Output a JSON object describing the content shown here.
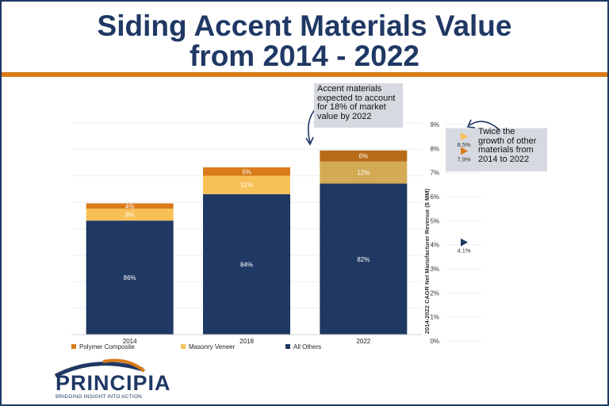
{
  "header": {
    "title_line1": "Siding Accent Materials Value",
    "title_line2": "from 2014 - 2022"
  },
  "logo": {
    "name": "PRINCIPIA",
    "tagline": "BRIDGING INSIGHT INTO ACTION"
  },
  "colors": {
    "navy": "#1f3864",
    "orange": "#d97b1a",
    "light_orange": "#f7c157",
    "tan": "#d4aa55",
    "brown": "#b86b17",
    "callout_bg": "#d6d9df"
  },
  "chart_data": [
    {
      "type": "bar",
      "stacked": true,
      "categories": [
        "2014",
        "2018",
        "2022"
      ],
      "series": [
        {
          "name": "All Others",
          "values": [
            86,
            84,
            82
          ],
          "labels": [
            "86%",
            "84%",
            "82%"
          ],
          "color": "#1f3864"
        },
        {
          "name": "Masonry Veneer",
          "values": [
            9,
            11,
            12
          ],
          "labels": [
            "9%",
            "11%",
            "12%"
          ],
          "color": "#f7c157"
        },
        {
          "name": "Polymer Composite",
          "values": [
            4,
            5,
            6
          ],
          "labels": [
            "4%",
            "5%",
            "6%"
          ],
          "color": "#d97b1a"
        }
      ],
      "relative_heights": [
        0.62,
        0.79,
        0.87
      ],
      "legend": [
        "Polymer Composite",
        "Masonry Veneer",
        "All Others"
      ],
      "legend_position": "bottom",
      "grid": true,
      "annotation": "Accent materials expected to account for 18% of market value by 2022"
    },
    {
      "type": "scatter",
      "ylabel": "2014-2022 CAGR Net Manufacturer Revenue ($ MM)",
      "ylim": [
        0,
        9
      ],
      "yticks": [
        "0%",
        "1%",
        "2%",
        "3%",
        "4%",
        "5%",
        "6%",
        "7%",
        "8%",
        "9%"
      ],
      "points": [
        {
          "series": "Masonry Veneer",
          "value": 8.5,
          "label": "8.5%",
          "color": "#f7c157"
        },
        {
          "series": "Polymer Composite",
          "value": 7.9,
          "label": "7.9%",
          "color": "#d97b1a"
        },
        {
          "series": "All Others",
          "value": 4.1,
          "label": "4.1%",
          "color": "#1f3864"
        }
      ],
      "annotation": "Twice the growth of other materials from 2014 to 2022"
    }
  ]
}
